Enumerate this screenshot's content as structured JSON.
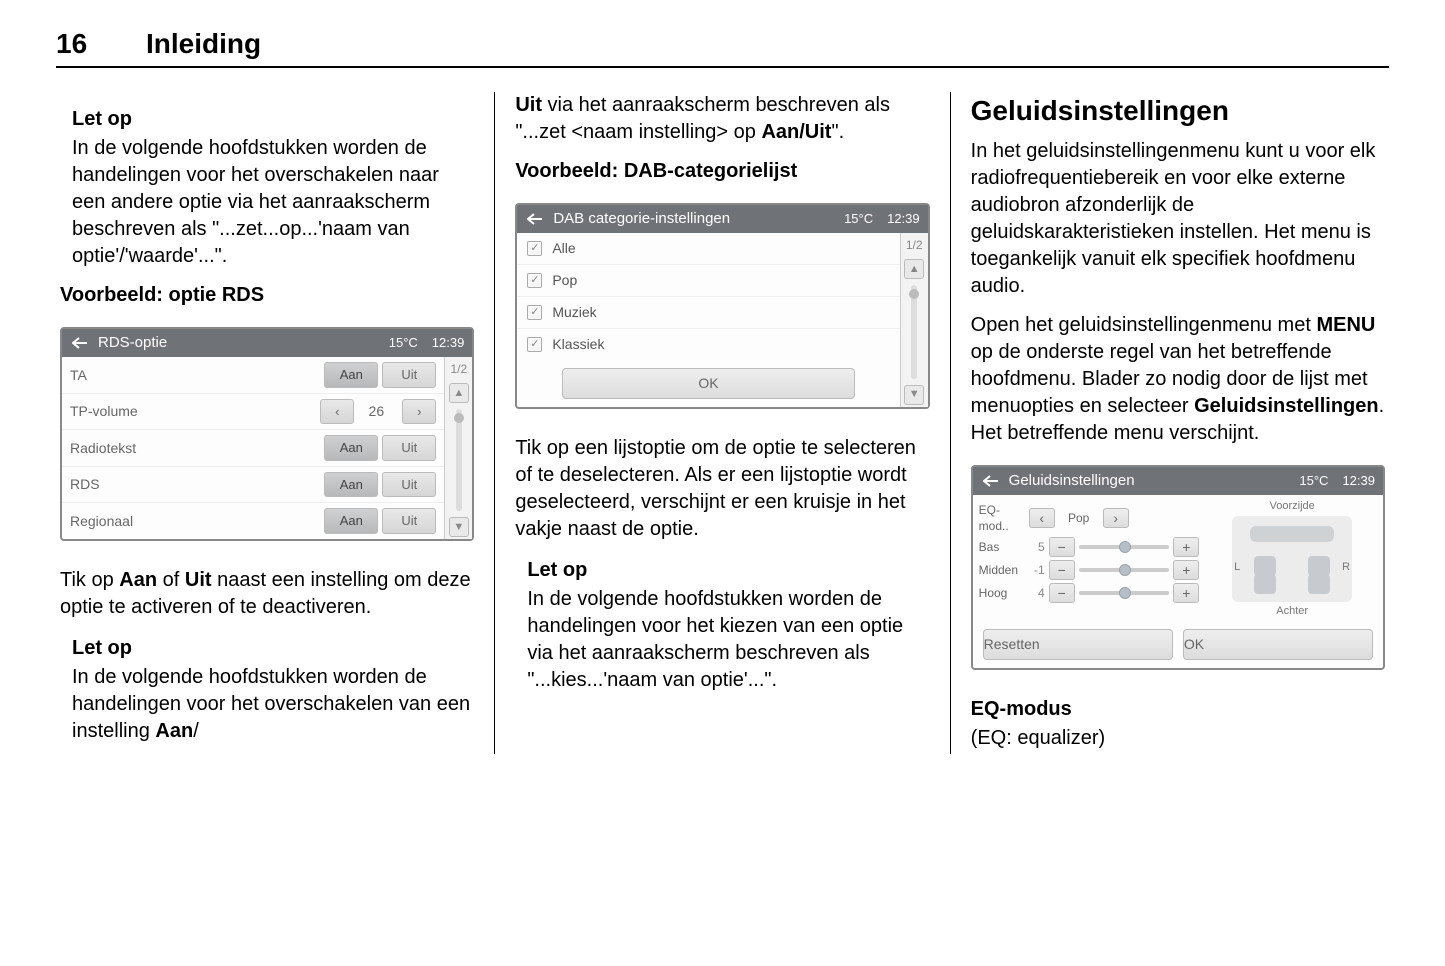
{
  "page": {
    "number": "16",
    "chapter": "Inleiding"
  },
  "col1": {
    "note1_heading": "Let op",
    "note1_body": "In de volgende hoofdstukken worden de handelingen voor het overschakelen naar een andere optie via het aanraakscherm beschreven als \"...zet...op...'naam van optie'/'waarde'...\".",
    "example_heading": "Voorbeeld: optie RDS",
    "rds_panel": {
      "title": "RDS-optie",
      "temp": "15°C",
      "clock": "12:39",
      "page_counter": "1/2",
      "rows": [
        {
          "label": "TA",
          "type": "toggle",
          "on": "Aan",
          "off": "Uit"
        },
        {
          "label": "TP-volume",
          "type": "stepper",
          "value": "26"
        },
        {
          "label": "Radiotekst",
          "type": "toggle",
          "on": "Aan",
          "off": "Uit"
        },
        {
          "label": "RDS",
          "type": "toggle",
          "on": "Aan",
          "off": "Uit"
        },
        {
          "label": "Regionaal",
          "type": "toggle",
          "on": "Aan",
          "off": "Uit"
        }
      ]
    },
    "para1_pre": "Tik op ",
    "para1_b1": "Aan",
    "para1_mid": " of ",
    "para1_b2": "Uit",
    "para1_post": " naast een instelling om deze optie te activeren of te deactiveren.",
    "note2_heading": "Let op",
    "note2_body_pre": "In de volgende hoofdstukken worden de handelingen voor het overschakelen van een instelling ",
    "note2_body_b": "Aan",
    "note2_body_post": "/"
  },
  "col2": {
    "top_pre": "Uit",
    "top_mid": " via het aanraakscherm beschreven als \"...zet <naam instelling> op ",
    "top_b": "Aan/Uit",
    "top_post": "\".",
    "example_heading": "Voorbeeld: DAB-categorielijst",
    "dab_panel": {
      "title": "DAB categorie-instellingen",
      "temp": "15°C",
      "clock": "12:39",
      "page_counter": "1/2",
      "ok": "OK",
      "items": [
        {
          "label": "Alle"
        },
        {
          "label": "Pop"
        },
        {
          "label": "Muziek"
        },
        {
          "label": "Klassiek"
        }
      ]
    },
    "para1": "Tik op een lijstoptie om de optie te selecteren of te deselecteren. Als er een lijstoptie wordt geselecteerd, verschijnt er een kruisje in het vakje naast de optie.",
    "note_heading": "Let op",
    "note_body": "In de volgende hoofdstukken worden de handelingen voor het kiezen van een optie via het aanraakscherm beschreven als \"...kies...'naam van optie'...\"."
  },
  "col3": {
    "title": "Geluidsinstellingen",
    "para1": "In het geluidsinstellingenmenu kunt u voor elk radiofrequentiebereik en voor elke externe audiobron afzonderlijk de geluidskarakteristieken instellen. Het menu is toegankelijk vanuit elk specifiek hoofdmenu audio.",
    "para2_pre": "Open het geluidsinstellingenmenu met ",
    "para2_b1": "MENU",
    "para2_mid": " op de onderste regel van het betreffende hoofdmenu. Blader zo nodig door de lijst met menuopties en selecteer ",
    "para2_b2": "Geluidsinstellingen",
    "para2_post": ". Het betreffende menu verschijnt.",
    "eq_panel": {
      "title": "Geluidsinstellingen",
      "temp": "15°C",
      "clock": "12:39",
      "front": "Voorzijde",
      "rear": "Achter",
      "L": "L",
      "R": "R",
      "reset": "Resetten",
      "ok": "OK",
      "rows": [
        {
          "label": "EQ-mod..",
          "type": "mode",
          "value": "Pop"
        },
        {
          "label": "Bas",
          "type": "slider",
          "value": "5"
        },
        {
          "label": "Midden",
          "type": "slider",
          "value": "-1"
        },
        {
          "label": "Hoog",
          "type": "slider",
          "value": "4"
        }
      ]
    },
    "eq_heading": "EQ-modus",
    "eq_sub": "(EQ: equalizer)"
  }
}
